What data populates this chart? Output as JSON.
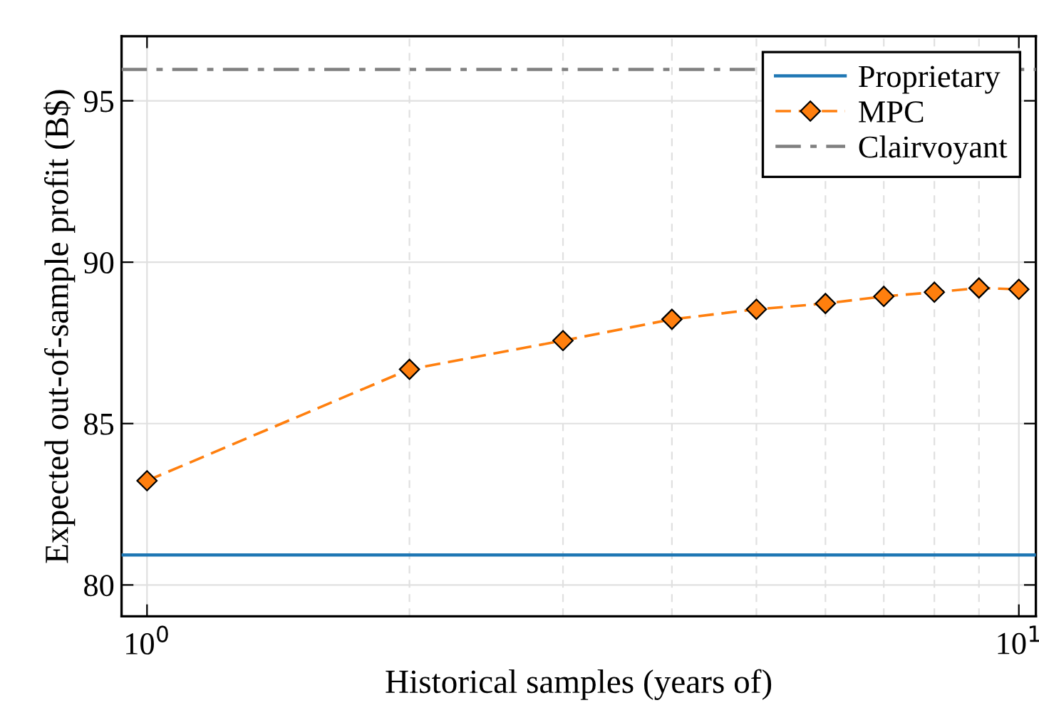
{
  "chart_data": {
    "type": "line",
    "xlabel": "Historical samples (years of)",
    "ylabel": "Expected out-of-sample profit (B$)",
    "x": [
      1,
      2,
      3,
      4,
      5,
      6,
      7,
      8,
      9,
      10
    ],
    "series": [
      {
        "name": "MPC",
        "color": "#ff7f0e",
        "values": [
          83.23,
          86.68,
          87.57,
          88.23,
          88.54,
          88.72,
          88.94,
          89.07,
          89.2,
          89.16
        ],
        "marker": "diamond",
        "line_style": "dashed"
      }
    ],
    "ref_lines": [
      {
        "axis": "y",
        "value": 80.93,
        "label": "Proprietary",
        "color": "#1f77b4",
        "line_style": "solid"
      },
      {
        "axis": "y",
        "value": 95.97,
        "label": "Clairvoyant",
        "color": "#808080",
        "line_style": "dashdot"
      }
    ],
    "log": "x",
    "xlim": [
      0.935,
      10.46
    ],
    "xticks": [
      {
        "value": 1,
        "label": "10$^{0}$"
      },
      {
        "value": 10,
        "label": "10$^{1}$"
      }
    ],
    "ylim": [
      79.03,
      97.0
    ],
    "yticks": [
      80,
      85,
      90,
      95
    ],
    "grid": true,
    "legend": "top right"
  }
}
